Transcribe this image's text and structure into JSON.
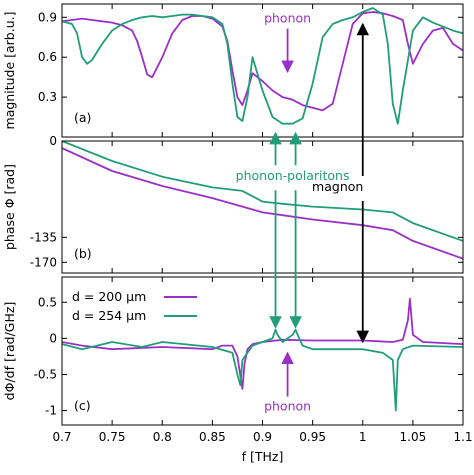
{
  "chart_data": [
    {
      "type": "line",
      "id": "a",
      "panel_label": "(a)",
      "ylabel": "magnitude [arb.u.]",
      "xlim": [
        0.7,
        1.1
      ],
      "ylim": [
        0.0,
        1.0
      ],
      "yticks": [
        0.3,
        0.6,
        0.9
      ],
      "ytick_labels": [
        "0.3",
        "0.6",
        "0.9"
      ],
      "series": [
        {
          "name": "d = 200 µm",
          "color": "#9b30c8",
          "x": [
            0.7,
            0.71,
            0.72,
            0.73,
            0.74,
            0.75,
            0.76,
            0.77,
            0.775,
            0.78,
            0.785,
            0.79,
            0.8,
            0.81,
            0.82,
            0.83,
            0.84,
            0.85,
            0.86,
            0.865,
            0.87,
            0.875,
            0.88,
            0.885,
            0.89,
            0.9,
            0.91,
            0.92,
            0.93,
            0.94,
            0.95,
            0.96,
            0.97,
            0.98,
            0.99,
            1.0,
            1.01,
            1.02,
            1.03,
            1.04,
            1.045,
            1.05,
            1.06,
            1.07,
            1.08,
            1.09,
            1.1
          ],
          "values": [
            0.87,
            0.88,
            0.89,
            0.88,
            0.87,
            0.86,
            0.84,
            0.8,
            0.72,
            0.6,
            0.47,
            0.45,
            0.6,
            0.78,
            0.88,
            0.91,
            0.91,
            0.89,
            0.83,
            0.72,
            0.5,
            0.3,
            0.24,
            0.35,
            0.48,
            0.42,
            0.35,
            0.3,
            0.28,
            0.24,
            0.22,
            0.2,
            0.25,
            0.55,
            0.85,
            0.93,
            0.94,
            0.93,
            0.91,
            0.88,
            0.7,
            0.55,
            0.7,
            0.8,
            0.82,
            0.7,
            0.65
          ]
        },
        {
          "name": "d = 254 µm",
          "color": "#1f9e78",
          "x": [
            0.7,
            0.71,
            0.715,
            0.72,
            0.725,
            0.73,
            0.74,
            0.75,
            0.76,
            0.77,
            0.78,
            0.79,
            0.8,
            0.81,
            0.82,
            0.83,
            0.84,
            0.85,
            0.86,
            0.865,
            0.87,
            0.875,
            0.88,
            0.885,
            0.89,
            0.9,
            0.91,
            0.92,
            0.93,
            0.94,
            0.95,
            0.96,
            0.97,
            0.98,
            0.99,
            1.0,
            1.01,
            1.02,
            1.025,
            1.03,
            1.035,
            1.04,
            1.05,
            1.06,
            1.07,
            1.08,
            1.09,
            1.1
          ],
          "values": [
            0.87,
            0.85,
            0.78,
            0.6,
            0.55,
            0.58,
            0.7,
            0.8,
            0.85,
            0.88,
            0.9,
            0.91,
            0.9,
            0.91,
            0.92,
            0.92,
            0.91,
            0.9,
            0.85,
            0.7,
            0.4,
            0.15,
            0.12,
            0.3,
            0.6,
            0.35,
            0.15,
            0.1,
            0.1,
            0.14,
            0.4,
            0.75,
            0.85,
            0.88,
            0.9,
            0.94,
            0.97,
            0.92,
            0.7,
            0.25,
            0.1,
            0.35,
            0.8,
            0.9,
            0.86,
            0.83,
            0.8,
            0.78
          ]
        }
      ],
      "annotations": [
        {
          "text": "phonon",
          "color": "#9b30c8",
          "x": 0.925,
          "y": 0.86,
          "arrow_to": [
            0.925,
            0.49
          ]
        }
      ]
    },
    {
      "type": "line",
      "id": "b",
      "panel_label": "(b)",
      "ylabel": "phase Φ [rad]",
      "xlim": [
        0.7,
        1.1
      ],
      "ylim": [
        -185,
        0
      ],
      "yticks": [
        0,
        -135,
        -170
      ],
      "ytick_labels": [
        "0",
        "-135",
        "-170"
      ],
      "series": [
        {
          "name": "d = 200 µm",
          "color": "#9b30c8",
          "x": [
            0.7,
            0.75,
            0.8,
            0.85,
            0.88,
            0.9,
            0.92,
            0.95,
            1.0,
            1.03,
            1.05,
            1.1
          ],
          "values": [
            -10,
            -42,
            -63,
            -80,
            -92,
            -100,
            -104,
            -110,
            -118,
            -125,
            -140,
            -165
          ]
        },
        {
          "name": "d = 254 µm",
          "color": "#1f9e78",
          "x": [
            0.7,
            0.75,
            0.8,
            0.85,
            0.88,
            0.9,
            0.92,
            0.95,
            1.0,
            1.03,
            1.05,
            1.1
          ],
          "values": [
            0,
            -28,
            -50,
            -65,
            -70,
            -85,
            -88,
            -92,
            -96,
            -100,
            -115,
            -140
          ]
        }
      ],
      "annotations": [
        {
          "text": "phonon-polaritons",
          "color": "#1f9e78",
          "x": 0.93,
          "y": -55
        },
        {
          "text": "magnon",
          "color": "#000000",
          "x": 0.975,
          "y": -70
        }
      ]
    },
    {
      "type": "line",
      "id": "c",
      "panel_label": "(c)",
      "ylabel": "dΦ/df [rad/GHz]",
      "xlabel": "f [THz]",
      "xlim": [
        0.7,
        1.1
      ],
      "ylim": [
        -1.2,
        0.85
      ],
      "xticks": [
        0.7,
        0.75,
        0.8,
        0.85,
        0.9,
        0.95,
        1,
        1.05,
        1.1
      ],
      "xtick_labels": [
        "0.7",
        "0.75",
        "0.8",
        "0.85",
        "0.9",
        "0.95",
        "1",
        "1.05",
        "1.1"
      ],
      "yticks": [
        0.5,
        0,
        -0.5,
        -1
      ],
      "ytick_labels": [
        "0.5",
        "0",
        "-0.5",
        "-1"
      ],
      "series": [
        {
          "name": "d = 200 µm",
          "color": "#9b30c8",
          "x": [
            0.7,
            0.72,
            0.75,
            0.8,
            0.85,
            0.86,
            0.87,
            0.875,
            0.88,
            0.882,
            0.885,
            0.89,
            0.9,
            0.92,
            0.95,
            1.0,
            1.03,
            1.04,
            1.045,
            1.047,
            1.05,
            1.06,
            1.1
          ],
          "values": [
            -0.05,
            -0.1,
            -0.15,
            -0.12,
            -0.15,
            -0.1,
            -0.1,
            -0.25,
            -0.7,
            -0.35,
            -0.15,
            -0.08,
            -0.05,
            -0.02,
            -0.03,
            -0.03,
            -0.05,
            -0.02,
            0.25,
            0.55,
            0.05,
            -0.05,
            -0.08
          ]
        },
        {
          "name": "d = 254 µm",
          "color": "#1f9e78",
          "x": [
            0.7,
            0.72,
            0.75,
            0.78,
            0.8,
            0.85,
            0.87,
            0.875,
            0.878,
            0.88,
            0.89,
            0.9,
            0.91,
            0.913,
            0.915,
            0.92,
            0.93,
            0.933,
            0.935,
            0.94,
            0.95,
            1.0,
            1.02,
            1.03,
            1.033,
            1.035,
            1.04,
            1.05,
            1.1
          ],
          "values": [
            -0.08,
            -0.15,
            -0.05,
            -0.12,
            -0.05,
            -0.12,
            -0.2,
            -0.5,
            -0.65,
            -0.3,
            -0.1,
            -0.05,
            0.0,
            0.12,
            0.05,
            -0.05,
            0.05,
            0.12,
            0.05,
            -0.1,
            -0.15,
            -0.15,
            -0.2,
            -0.3,
            -1.0,
            -0.3,
            -0.15,
            -0.1,
            -0.12
          ]
        }
      ],
      "legend": {
        "placement": "top-left",
        "entries": [
          "d = 200 µm",
          "d = 254 µm"
        ]
      },
      "annotations": [
        {
          "text": "phonon",
          "color": "#9b30c8",
          "x": 0.925,
          "y": -1.0
        }
      ]
    }
  ],
  "colors": {
    "purple": "#9b30c8",
    "green": "#1f9e78",
    "black": "#000000"
  }
}
